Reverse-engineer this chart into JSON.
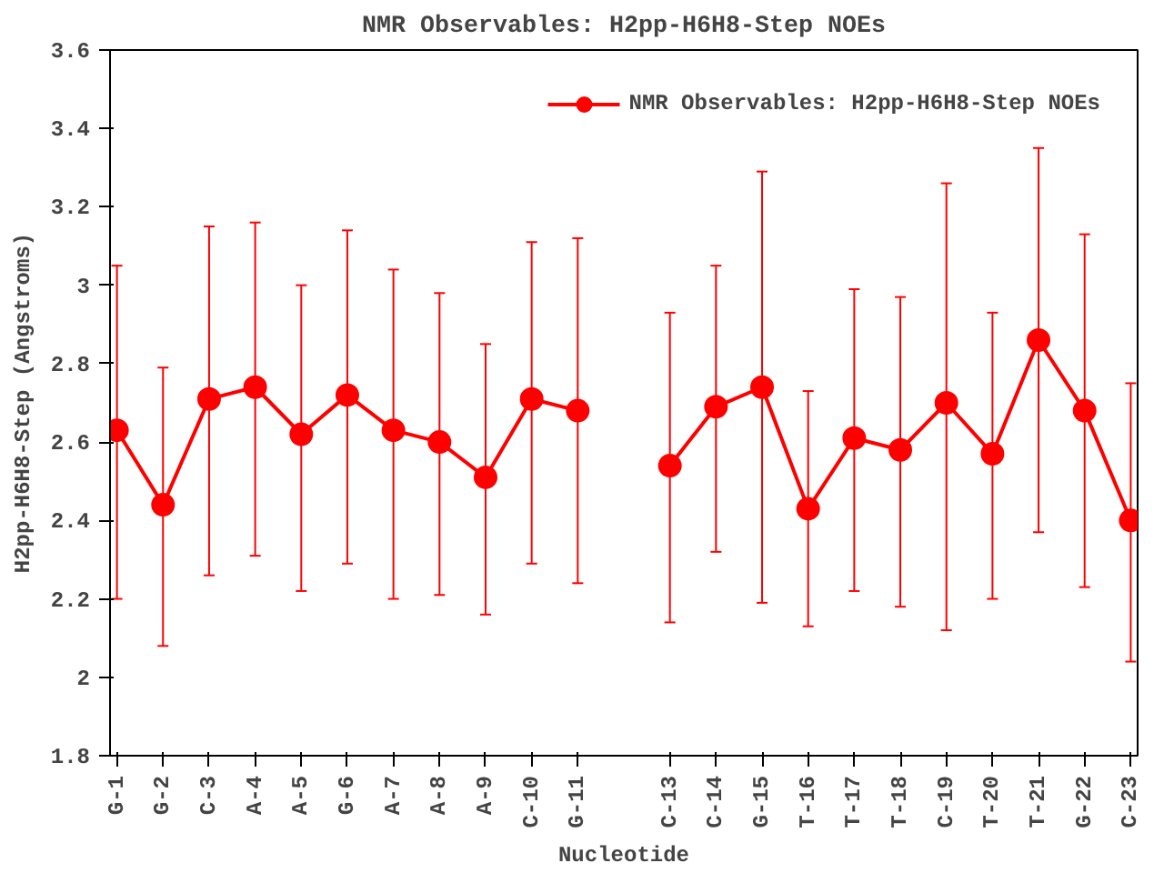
{
  "chart_data": {
    "type": "line",
    "title": "NMR Observables: H2pp-H6H8-Step NOEs",
    "xlabel": "Nucleotide",
    "ylabel": "H2pp-H6H8-Step (Angstroms)",
    "categories": [
      "G-1",
      "G-2",
      "C-3",
      "A-4",
      "A-5",
      "G-6",
      "A-7",
      "A-8",
      "A-9",
      "C-10",
      "G-11",
      null,
      "C-13",
      "C-14",
      "G-15",
      "T-16",
      "T-17",
      "T-18",
      "C-19",
      "T-20",
      "T-21",
      "G-22",
      "C-23"
    ],
    "series": [
      {
        "name": "NMR Observables: H2pp-H6H8-Step NOEs",
        "color": "#ff0000",
        "values": [
          2.63,
          2.44,
          2.71,
          2.74,
          2.62,
          2.72,
          2.63,
          2.6,
          2.51,
          2.71,
          2.68,
          null,
          2.54,
          2.69,
          2.74,
          2.43,
          2.61,
          2.58,
          2.7,
          2.57,
          2.86,
          2.68,
          2.4
        ],
        "errors": [
          [
            2.2,
            3.05
          ],
          [
            2.08,
            2.79
          ],
          [
            2.26,
            3.15
          ],
          [
            2.31,
            3.16
          ],
          [
            2.22,
            3.0
          ],
          [
            2.29,
            3.14
          ],
          [
            2.2,
            3.04
          ],
          [
            2.21,
            2.98
          ],
          [
            2.16,
            2.85
          ],
          [
            2.29,
            3.11
          ],
          [
            2.24,
            3.12
          ],
          null,
          [
            2.14,
            2.93
          ],
          [
            2.32,
            3.05
          ],
          [
            2.19,
            3.29
          ],
          [
            2.13,
            2.73
          ],
          [
            2.22,
            2.99
          ],
          [
            2.18,
            2.97
          ],
          [
            2.12,
            3.26
          ],
          [
            2.2,
            2.93
          ],
          [
            2.37,
            3.35
          ],
          [
            2.23,
            3.13
          ],
          [
            2.04,
            2.75
          ]
        ]
      }
    ],
    "ylim": [
      1.8,
      3.6
    ],
    "yticks": [
      1.8,
      2,
      2.2,
      2.4,
      2.6,
      2.8,
      3,
      3.2,
      3.4,
      3.6
    ],
    "grid": false,
    "legend": "top right",
    "marker": "circle",
    "line_style": "solid"
  }
}
